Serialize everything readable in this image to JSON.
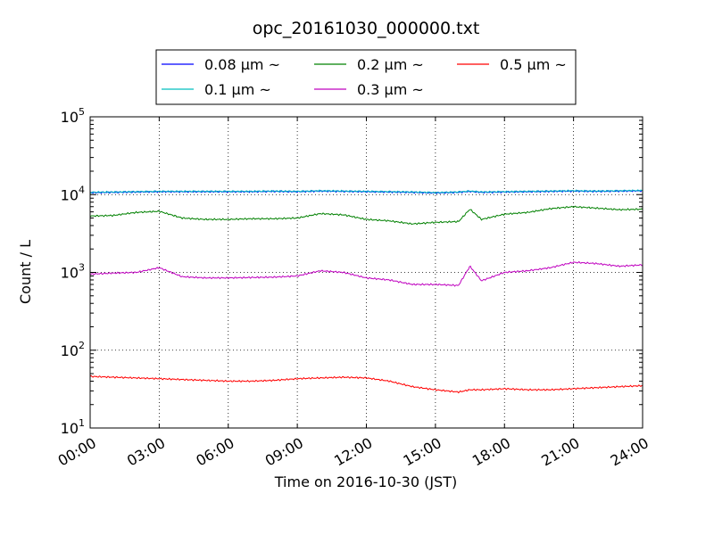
{
  "chart_data": {
    "type": "line",
    "title": "opc_20161030_000000.txt",
    "xlabel": "Time on 2016-10-30 (JST)",
    "ylabel": "Count / L",
    "yscale": "log",
    "ylim": [
      10,
      100000
    ],
    "xlim_hours": [
      0,
      24
    ],
    "grid": true,
    "legend_placement": "top-center",
    "x_ticks": [
      "00:00",
      "03:00",
      "06:00",
      "09:00",
      "12:00",
      "15:00",
      "18:00",
      "21:00",
      "24:00"
    ],
    "y_ticks": [
      {
        "base": "10",
        "exp": "1",
        "value": 10
      },
      {
        "base": "10",
        "exp": "2",
        "value": 100
      },
      {
        "base": "10",
        "exp": "3",
        "value": 1000
      },
      {
        "base": "10",
        "exp": "4",
        "value": 10000
      },
      {
        "base": "10",
        "exp": "5",
        "value": 100000
      }
    ],
    "x_hours": [
      0,
      1,
      2,
      3,
      4,
      5,
      6,
      7,
      8,
      9,
      10,
      11,
      12,
      13,
      14,
      15,
      16,
      16.5,
      17,
      18,
      19,
      20,
      21,
      22,
      23,
      24
    ],
    "series": [
      {
        "name": "0.08 μm ~",
        "color": "#0000ff",
        "values": [
          10600,
          10700,
          10800,
          10900,
          10900,
          10900,
          10900,
          10900,
          11000,
          10900,
          11100,
          11000,
          10900,
          10800,
          10700,
          10500,
          10700,
          11000,
          10700,
          10800,
          10900,
          11000,
          11100,
          11000,
          11100,
          11200
        ]
      },
      {
        "name": "0.1 μm ~",
        "color": "#00bfbf",
        "values": [
          10700,
          10800,
          10900,
          11000,
          11000,
          11000,
          11000,
          11000,
          11100,
          11000,
          11200,
          11100,
          11000,
          10900,
          10800,
          10600,
          10800,
          11100,
          10800,
          10900,
          11000,
          11100,
          11200,
          11100,
          11200,
          11300
        ]
      },
      {
        "name": "0.2 μm ~",
        "color": "#008000",
        "values": [
          5300,
          5400,
          5900,
          6100,
          5000,
          4800,
          4800,
          4900,
          4900,
          5000,
          5700,
          5500,
          4800,
          4600,
          4200,
          4400,
          4500,
          6500,
          4800,
          5600,
          5900,
          6600,
          7000,
          6700,
          6400,
          6500
        ]
      },
      {
        "name": "0.3 μm ~",
        "color": "#bf00bf",
        "values": [
          950,
          980,
          1000,
          1150,
          880,
          850,
          850,
          860,
          870,
          900,
          1050,
          1000,
          850,
          800,
          700,
          700,
          680,
          1200,
          780,
          1000,
          1050,
          1150,
          1350,
          1300,
          1200,
          1250
        ]
      },
      {
        "name": "0.5 μm ~",
        "color": "#ff0000",
        "values": [
          46,
          45,
          44,
          43,
          42,
          41,
          40,
          40,
          41,
          43,
          44,
          45,
          44,
          40,
          34,
          31,
          29,
          31,
          31,
          32,
          31,
          31,
          32,
          33,
          34,
          35
        ]
      }
    ]
  }
}
